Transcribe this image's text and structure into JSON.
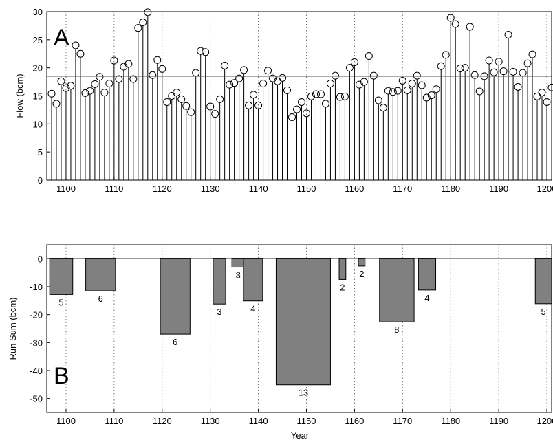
{
  "chart_data": [
    {
      "type": "stem",
      "panel_label": "A",
      "xlabel": "",
      "ylabel": "Flow (bcm)",
      "xlim": [
        1096,
        1201
      ],
      "ylim": [
        0,
        30
      ],
      "xticks": [
        1100,
        1110,
        1120,
        1130,
        1140,
        1150,
        1160,
        1170,
        1180,
        1190,
        1200
      ],
      "yticks": [
        0,
        5,
        10,
        15,
        20,
        25,
        30
      ],
      "grid": "vertical dotted",
      "mean_line": 18.5,
      "x": [
        1097,
        1098,
        1099,
        1100,
        1101,
        1102,
        1103,
        1104,
        1105,
        1106,
        1107,
        1108,
        1109,
        1110,
        1111,
        1112,
        1113,
        1114,
        1115,
        1116,
        1117,
        1118,
        1119,
        1120,
        1121,
        1122,
        1123,
        1124,
        1125,
        1126,
        1127,
        1128,
        1129,
        1130,
        1131,
        1132,
        1133,
        1134,
        1135,
        1136,
        1137,
        1138,
        1139,
        1140,
        1141,
        1142,
        1143,
        1144,
        1145,
        1146,
        1147,
        1148,
        1149,
        1150,
        1151,
        1152,
        1153,
        1154,
        1155,
        1156,
        1157,
        1158,
        1159,
        1160,
        1161,
        1162,
        1163,
        1164,
        1165,
        1166,
        1167,
        1168,
        1169,
        1170,
        1171,
        1172,
        1173,
        1174,
        1175,
        1176,
        1177,
        1178,
        1179,
        1180,
        1181,
        1182,
        1183,
        1184,
        1185,
        1186,
        1187,
        1188,
        1189,
        1190,
        1191,
        1192,
        1193,
        1194,
        1195,
        1196,
        1197,
        1198,
        1199,
        1200,
        1201
      ],
      "y": [
        15.4,
        13.6,
        17.6,
        16.4,
        16.8,
        24.0,
        22.5,
        15.5,
        15.9,
        17.1,
        18.4,
        15.6,
        17.2,
        21.3,
        18.0,
        20.2,
        20.7,
        18.0,
        27.1,
        28.1,
        29.9,
        18.7,
        21.4,
        19.8,
        13.9,
        15.0,
        15.6,
        14.4,
        13.2,
        12.1,
        19.1,
        23.0,
        22.8,
        13.1,
        11.8,
        14.4,
        20.4,
        17.0,
        17.3,
        18.1,
        19.6,
        13.3,
        15.2,
        13.3,
        17.2,
        19.5,
        18.1,
        17.6,
        18.2,
        16.0,
        11.2,
        12.6,
        13.9,
        11.9,
        14.9,
        15.3,
        15.3,
        13.6,
        17.2,
        18.6,
        14.8,
        14.9,
        20.0,
        21.0,
        17.0,
        17.5,
        22.1,
        18.6,
        14.2,
        12.9,
        15.9,
        15.7,
        15.9,
        17.7,
        16.0,
        17.2,
        18.6,
        16.9,
        14.7,
        15.1,
        16.2,
        20.3,
        22.3,
        28.9,
        27.8,
        19.9,
        20.0,
        27.3,
        18.7,
        15.8,
        18.5,
        21.3,
        19.2,
        21.1,
        19.4,
        25.9,
        19.3,
        16.6,
        19.1,
        20.8,
        22.4,
        14.9,
        15.6,
        13.9,
        16.5
      ]
    },
    {
      "type": "bar",
      "panel_label": "B",
      "xlabel": "Year",
      "ylabel": "Run Sum (bcm)",
      "xlim": [
        1096,
        1201
      ],
      "ylim": [
        -55,
        5
      ],
      "xticks": [
        1100,
        1110,
        1120,
        1130,
        1140,
        1150,
        1160,
        1170,
        1180,
        1190,
        1200
      ],
      "yticks": [
        0,
        -10,
        -20,
        -30,
        -40,
        -50
      ],
      "grid": "vertical dotted",
      "runs": [
        {
          "start": 1096.6,
          "end": 1101.4,
          "value": -12.8,
          "length": "5"
        },
        {
          "start": 1104.1,
          "end": 1110.3,
          "value": -11.5,
          "length": "6"
        },
        {
          "start": 1119.6,
          "end": 1125.8,
          "value": -27.0,
          "length": "6"
        },
        {
          "start": 1130.6,
          "end": 1133.2,
          "value": -16.2,
          "length": "3"
        },
        {
          "start": 1134.5,
          "end": 1137.1,
          "value": -3.0,
          "length": "3"
        },
        {
          "start": 1136.9,
          "end": 1140.9,
          "value": -15.1,
          "length": "4"
        },
        {
          "start": 1143.7,
          "end": 1155.0,
          "value": -45.1,
          "length": "13"
        },
        {
          "start": 1156.8,
          "end": 1158.2,
          "value": -7.4,
          "length": "2"
        },
        {
          "start": 1160.8,
          "end": 1162.2,
          "value": -2.6,
          "length": "2"
        },
        {
          "start": 1165.2,
          "end": 1172.4,
          "value": -22.6,
          "length": "8"
        },
        {
          "start": 1173.3,
          "end": 1176.9,
          "value": -11.2,
          "length": "4"
        },
        {
          "start": 1197.6,
          "end": 1202.0,
          "value": -16.1,
          "length": "5"
        }
      ]
    }
  ]
}
